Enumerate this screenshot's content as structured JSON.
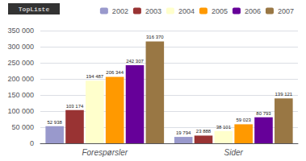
{
  "chart_data": {
    "type": "bar",
    "categories": [
      "Forespørsler",
      "Sider"
    ],
    "series": [
      {
        "name": "2002",
        "color": "#9999cc",
        "values": [
          52938,
          19794
        ],
        "value_labels": [
          "52 938",
          "19 794"
        ]
      },
      {
        "name": "2003",
        "color": "#993333",
        "values": [
          103174,
          23888
        ],
        "value_labels": [
          "103 174",
          "23 888"
        ]
      },
      {
        "name": "2004",
        "color": "#ffffcc",
        "values": [
          194487,
          38101
        ],
        "value_labels": [
          "194 487",
          "38 101"
        ]
      },
      {
        "name": "2005",
        "color": "#ff9900",
        "values": [
          206344,
          59023
        ],
        "value_labels": [
          "206 344",
          "59 023"
        ]
      },
      {
        "name": "2006",
        "color": "#660099",
        "values": [
          242307,
          80793
        ],
        "value_labels": [
          "242 307",
          "80 793"
        ]
      },
      {
        "name": "2007",
        "color": "#997744",
        "values": [
          316370,
          139121
        ],
        "value_labels": [
          "316 370",
          "139 121"
        ]
      }
    ],
    "ylim": [
      0,
      350000
    ],
    "yticks": [
      0,
      {
        "value": 50000,
        "label": "50 000"
      },
      {
        "value": 100000,
        "label": "100 000"
      },
      {
        "value": 150000,
        "label": "150 000"
      },
      {
        "value": 200000,
        "label": "200 000"
      },
      {
        "value": 250000,
        "label": "250 000"
      },
      {
        "value": 300000,
        "label": "300 000"
      },
      {
        "value": 350000,
        "label": "350 000"
      }
    ],
    "grid": true,
    "legend": "upper right",
    "data_labels": true,
    "annotations": [
      "TopListe"
    ]
  }
}
